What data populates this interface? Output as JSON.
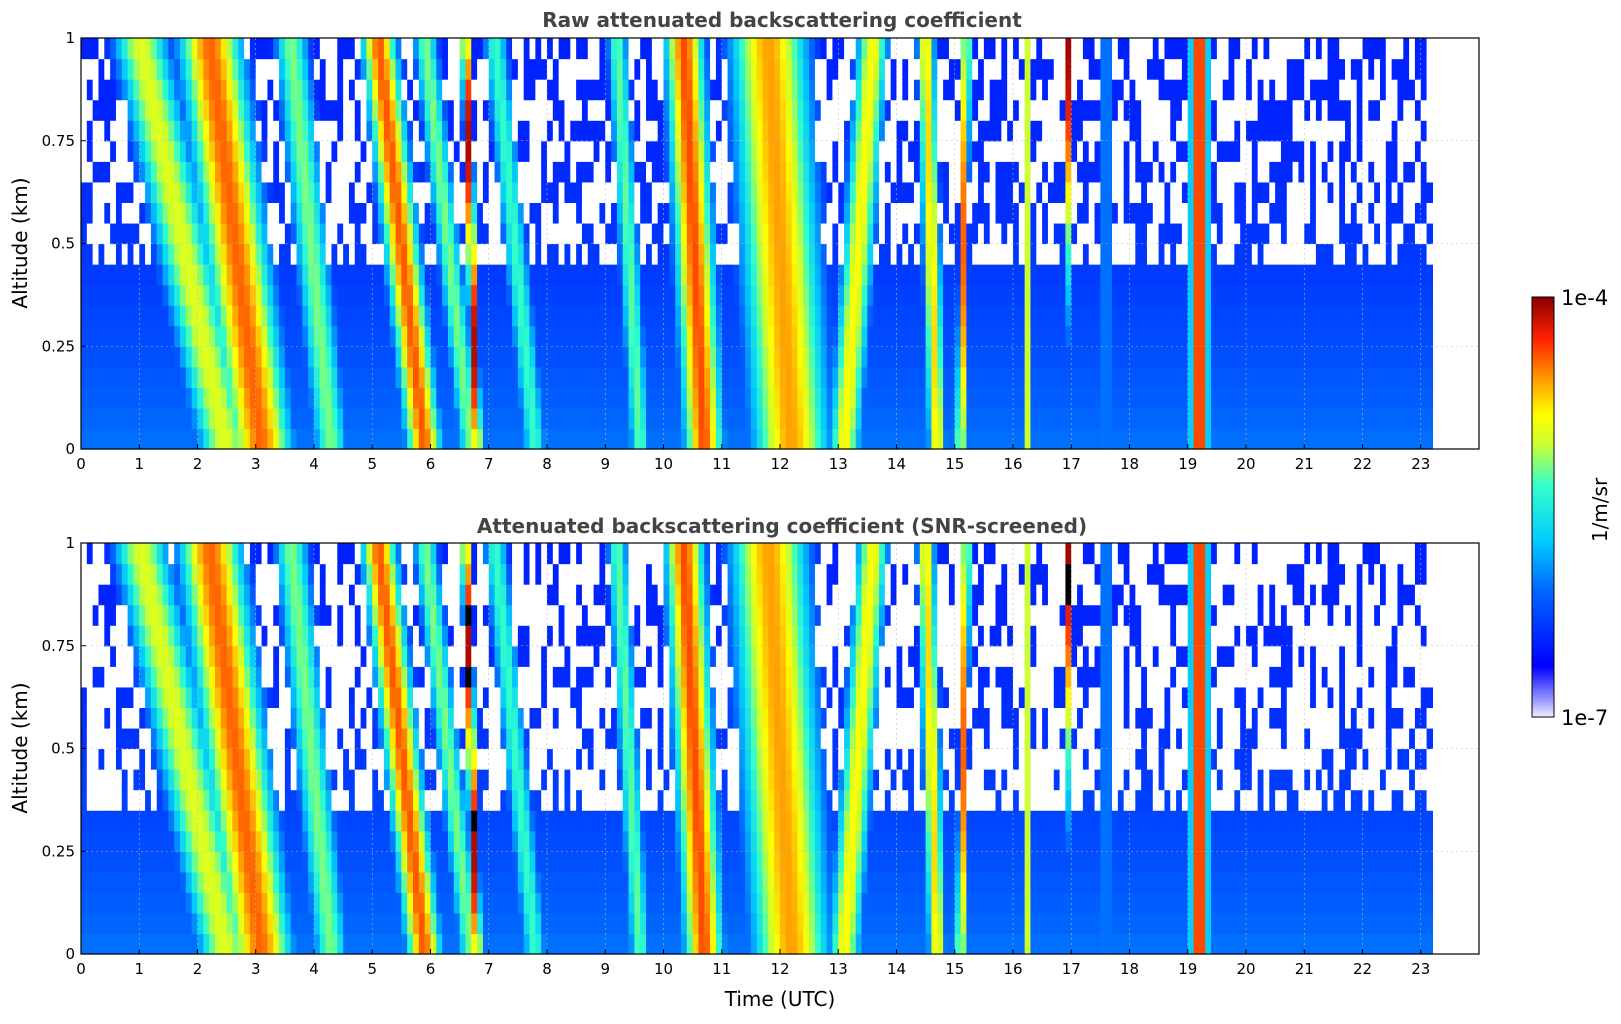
{
  "chart_data": [
    {
      "type": "heatmap",
      "title": "Raw attenuated backscattering coefficient",
      "xlabel": "",
      "ylabel": "Altitude (km)",
      "xlim": [
        0,
        24
      ],
      "ylim": [
        0,
        1
      ],
      "x_ticks": [
        "0",
        "1",
        "2",
        "3",
        "4",
        "5",
        "6",
        "7",
        "8",
        "9",
        "10",
        "11",
        "12",
        "13",
        "14",
        "15",
        "16",
        "17",
        "18",
        "19",
        "20",
        "21",
        "22",
        "23"
      ],
      "y_ticks": [
        "0",
        "0.25",
        "0.5",
        "0.75",
        "1"
      ],
      "grid": true,
      "data_time_range": [
        0,
        23.2
      ],
      "screened": false,
      "features": [
        {
          "t_top": 1.0,
          "t_bottom": 2.5,
          "width": 0.8,
          "level": 0.68
        },
        {
          "t_top": 2.2,
          "t_bottom": 3.1,
          "width": 0.9,
          "level": 0.85
        },
        {
          "t_top": 3.6,
          "t_bottom": 4.3,
          "width": 0.5,
          "level": 0.6
        },
        {
          "t_top": 5.1,
          "t_bottom": 5.9,
          "width": 0.5,
          "level": 0.86
        },
        {
          "t_top": 5.9,
          "t_bottom": 6.7,
          "width": 0.35,
          "level": 0.6
        },
        {
          "t_top": 6.6,
          "t_bottom": 6.8,
          "width": 0.12,
          "level": 0.97
        },
        {
          "t_top": 7.1,
          "t_bottom": 7.8,
          "width": 0.35,
          "level": 0.55
        },
        {
          "t_top": 9.2,
          "t_bottom": 9.6,
          "width": 0.3,
          "level": 0.58
        },
        {
          "t_top": 10.35,
          "t_bottom": 10.7,
          "width": 0.55,
          "level": 0.87
        },
        {
          "t_top": 11.8,
          "t_bottom": 12.2,
          "width": 1.1,
          "level": 0.8
        },
        {
          "t_top": 13.6,
          "t_bottom": 13.1,
          "width": 0.45,
          "level": 0.72
        },
        {
          "t_top": 14.5,
          "t_bottom": 14.7,
          "width": 0.25,
          "level": 0.75
        },
        {
          "t_top": 15.2,
          "t_bottom": 15.1,
          "width": 0.12,
          "level": 0.85
        },
        {
          "t_top": 16.22,
          "t_bottom": 16.22,
          "width": 0.07,
          "level": 0.98
        },
        {
          "t_top": 16.95,
          "t_bottom": 17.0,
          "width": 0.05,
          "level": 0.98
        },
        {
          "t_top": 17.6,
          "t_bottom": 17.6,
          "width": 0.1,
          "level": 0.55
        },
        {
          "t_top": 19.2,
          "t_bottom": 19.2,
          "width": 0.25,
          "level": 0.95
        }
      ]
    },
    {
      "type": "heatmap",
      "title": "Attenuated backscattering coefficient (SNR-screened)",
      "xlabel": "Time (UTC)",
      "ylabel": "Altitude (km)",
      "xlim": [
        0,
        24
      ],
      "ylim": [
        0,
        1
      ],
      "x_ticks": [
        "0",
        "1",
        "2",
        "3",
        "4",
        "5",
        "6",
        "7",
        "8",
        "9",
        "10",
        "11",
        "12",
        "13",
        "14",
        "15",
        "16",
        "17",
        "18",
        "19",
        "20",
        "21",
        "22",
        "23"
      ],
      "y_ticks": [
        "0",
        "0.25",
        "0.5",
        "0.75",
        "1"
      ],
      "grid": true,
      "data_time_range": [
        0,
        23.2
      ],
      "screened": true,
      "features": [
        {
          "t_top": 1.0,
          "t_bottom": 2.5,
          "width": 0.8,
          "level": 0.68
        },
        {
          "t_top": 2.2,
          "t_bottom": 3.1,
          "width": 0.9,
          "level": 0.85
        },
        {
          "t_top": 3.6,
          "t_bottom": 4.3,
          "width": 0.5,
          "level": 0.6
        },
        {
          "t_top": 5.1,
          "t_bottom": 5.9,
          "width": 0.5,
          "level": 0.86
        },
        {
          "t_top": 5.9,
          "t_bottom": 6.7,
          "width": 0.35,
          "level": 0.6
        },
        {
          "t_top": 6.6,
          "t_bottom": 6.8,
          "width": 0.12,
          "level": 0.97
        },
        {
          "t_top": 7.1,
          "t_bottom": 7.8,
          "width": 0.35,
          "level": 0.55
        },
        {
          "t_top": 9.2,
          "t_bottom": 9.6,
          "width": 0.3,
          "level": 0.58
        },
        {
          "t_top": 10.35,
          "t_bottom": 10.7,
          "width": 0.55,
          "level": 0.87
        },
        {
          "t_top": 11.8,
          "t_bottom": 12.2,
          "width": 1.1,
          "level": 0.8
        },
        {
          "t_top": 13.6,
          "t_bottom": 13.1,
          "width": 0.45,
          "level": 0.72
        },
        {
          "t_top": 14.5,
          "t_bottom": 14.7,
          "width": 0.25,
          "level": 0.75
        },
        {
          "t_top": 15.2,
          "t_bottom": 15.1,
          "width": 0.12,
          "level": 0.85
        },
        {
          "t_top": 16.22,
          "t_bottom": 16.22,
          "width": 0.07,
          "level": 0.98
        },
        {
          "t_top": 16.95,
          "t_bottom": 17.0,
          "width": 0.05,
          "level": 0.98
        },
        {
          "t_top": 17.6,
          "t_bottom": 17.6,
          "width": 0.1,
          "level": 0.55
        },
        {
          "t_top": 19.2,
          "t_bottom": 19.2,
          "width": 0.25,
          "level": 0.95
        }
      ]
    }
  ],
  "colorbar": {
    "label": "1/m/sr",
    "min_label": "1e-7",
    "max_label": "1e-4",
    "colormap": "jet"
  }
}
